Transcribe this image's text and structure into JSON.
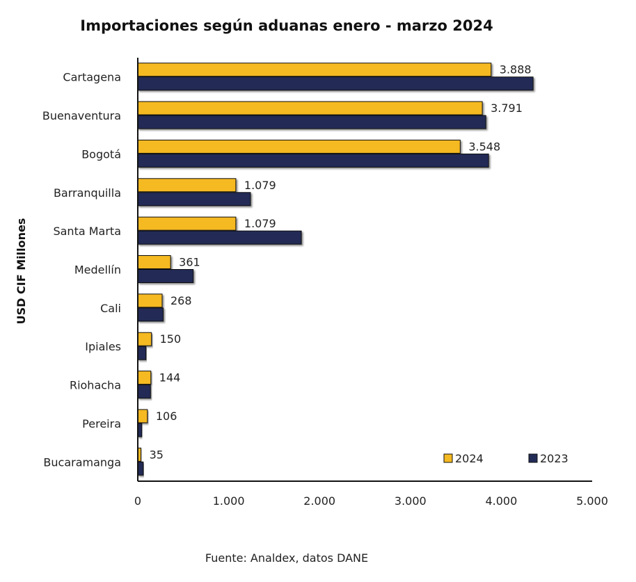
{
  "chart_data": {
    "type": "bar",
    "orientation": "horizontal",
    "title": "Importaciones según aduanas enero - marzo 2024",
    "ylabel": "USD CIF Millones",
    "xlabel": "",
    "source": "Fuente: Analdex, datos DANE",
    "categories": [
      "Cartagena",
      "Buenaventura",
      "Bogotá",
      "Barranquilla",
      "Santa Marta",
      "Medellín",
      "Cali",
      "Ipiales",
      "Riohacha",
      "Pereira",
      "Bucaramanga"
    ],
    "series": [
      {
        "name": "2024",
        "color": "#F5B921",
        "values": [
          3888,
          3791,
          3548,
          1079,
          1079,
          361,
          268,
          150,
          144,
          106,
          35
        ],
        "labels": [
          "3.888",
          "3.791",
          "3.548",
          "1.079",
          "1.079",
          "361",
          "268",
          "150",
          "144",
          "106",
          "35"
        ]
      },
      {
        "name": "2023",
        "color": "#222B55",
        "values": [
          4350,
          3830,
          3860,
          1240,
          1800,
          610,
          280,
          90,
          140,
          45,
          60
        ]
      }
    ],
    "xlim": [
      0,
      5000
    ],
    "xticks": [
      0,
      1000,
      2000,
      3000,
      4000,
      5000
    ],
    "xtick_labels": [
      "0",
      "1.000",
      "2.000",
      "3.000",
      "4.000",
      "5.000"
    ],
    "grid": false,
    "legend_position": "bottom-right"
  }
}
